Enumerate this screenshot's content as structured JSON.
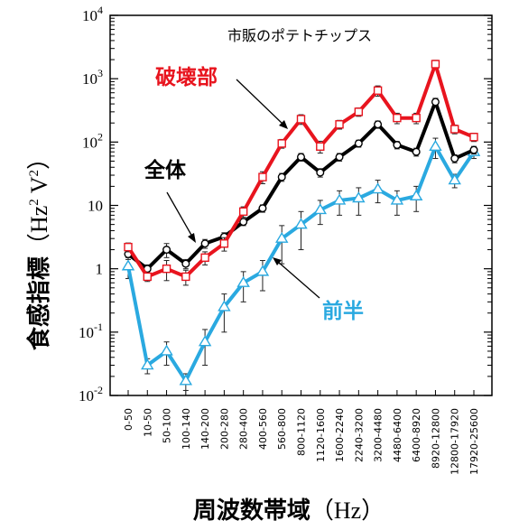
{
  "chart_data": {
    "type": "line",
    "title": "市販のポテトチップス",
    "xlabel": "周波数帯域（Hz）",
    "ylabel": "食感指標（Hz² V²）",
    "ylabel_parts": {
      "text": "食感指標",
      "unit_open": "（Hz",
      "sup1": "2",
      "unit_mid": " V",
      "sup2": "2",
      "unit_close": "）"
    },
    "xlabel_parts": {
      "text": "周波数帯域",
      "unit": "（Hz）"
    },
    "y_scale": "log",
    "ylim": [
      0.01,
      10000
    ],
    "y_ticks": [
      {
        "base": "10",
        "exp": "4"
      },
      {
        "base": "10",
        "exp": "3"
      },
      {
        "base": "10",
        "exp": "2"
      },
      {
        "base": "10",
        "exp": ""
      },
      {
        "base": "1",
        "exp": ""
      },
      {
        "base": "10",
        "exp": "-1"
      },
      {
        "base": "10",
        "exp": "-2"
      }
    ],
    "categories": [
      "0-50",
      "10-50",
      "50-100",
      "100-140",
      "140-200",
      "200-280",
      "280-400",
      "400-560",
      "560-800",
      "800-1120",
      "1120-1600",
      "1600-2240",
      "2240-3200",
      "3200-4480",
      "4480-6400",
      "6400-8920",
      "8920-12800",
      "12800-17920",
      "17920-25600"
    ],
    "series": [
      {
        "name": "破壊部",
        "color": "#e8141e",
        "marker": "square",
        "values": [
          2.2,
          0.75,
          1.0,
          0.75,
          1.5,
          2.5,
          8.0,
          28,
          95,
          230,
          85,
          190,
          300,
          650,
          240,
          240,
          1700,
          160,
          120
        ],
        "errors": [
          0.35,
          0.12,
          0.35,
          0.2,
          0.35,
          0.6,
          1.5,
          6,
          15,
          40,
          18,
          30,
          45,
          120,
          45,
          45,
          250,
          25,
          18
        ]
      },
      {
        "name": "全体",
        "color": "#000000",
        "marker": "circle",
        "values": [
          1.7,
          1.0,
          2.0,
          1.2,
          2.5,
          3.2,
          5.5,
          9.0,
          28,
          58,
          33,
          58,
          95,
          190,
          90,
          70,
          430,
          55,
          75
        ],
        "errors": [
          0.3,
          0.15,
          0.5,
          0.2,
          0.4,
          0.5,
          0.7,
          1.2,
          4,
          8,
          5,
          8,
          12,
          25,
          12,
          10,
          60,
          8,
          10
        ]
      },
      {
        "name": "前半",
        "color": "#2aa9e0",
        "marker": "triangle",
        "values": [
          1.1,
          0.03,
          0.05,
          0.017,
          0.07,
          0.25,
          0.6,
          0.9,
          3.0,
          5.0,
          8.5,
          12,
          13,
          18,
          12,
          14,
          85,
          25,
          70
        ],
        "errors": [
          0.4,
          0.008,
          0.02,
          0.005,
          0.04,
          0.15,
          0.3,
          0.45,
          1.8,
          3.0,
          3.5,
          5,
          6,
          7,
          5,
          6,
          30,
          6,
          15
        ]
      }
    ],
    "grid": false,
    "legend": "inline labels with arrows"
  }
}
